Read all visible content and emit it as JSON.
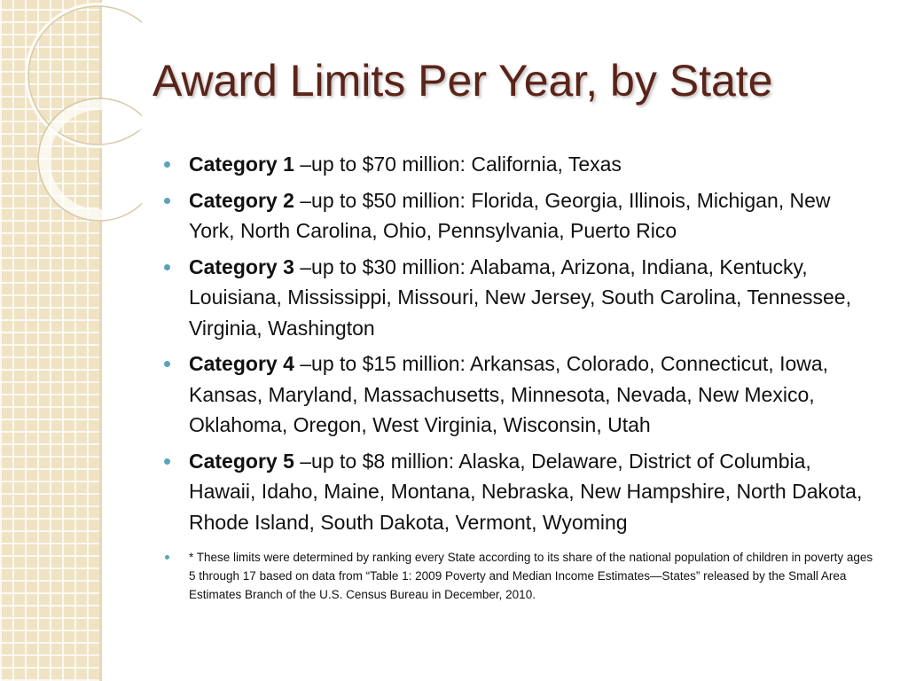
{
  "slide": {
    "title": "Award Limits Per Year, by State",
    "bullets": [
      {
        "label": "Category 1",
        "text": " –up to $70 million:  California, Texas"
      },
      {
        "label": "Category 2",
        "text": " –up to $50 million:  Florida, Georgia, Illinois, Michigan, New York, North Carolina, Ohio, Pennsylvania, Puerto Rico"
      },
      {
        "label": "Category 3",
        "text": " –up to $30 million: Alabama, Arizona, Indiana, Kentucky, Louisiana, Mississippi, Missouri, New Jersey, South Carolina, Tennessee, Virginia, Washington"
      },
      {
        "label": "Category 4",
        "text": " –up to $15 million:  Arkansas, Colorado, Connecticut, Iowa, Kansas, Maryland, Massachusetts, Minnesota, Nevada, New Mexico, Oklahoma, Oregon, West Virginia, Wisconsin, Utah"
      },
      {
        "label": "Category 5",
        "text": " –up to $8 million: Alaska, Delaware, District of Columbia, Hawaii, Idaho, Maine, Montana, Nebraska, New Hampshire, North Dakota, Rhode Island, South Dakota, Vermont, Wyoming"
      }
    ],
    "footnote": "* These limits were determined by ranking every State according to its share of the national population of children in poverty ages 5 through 17 based on data from “Table 1: 2009 Poverty and Median Income Estimates—States” released by the Small Area Estimates Branch of the U.S. Census Bureau in December, 2010."
  }
}
